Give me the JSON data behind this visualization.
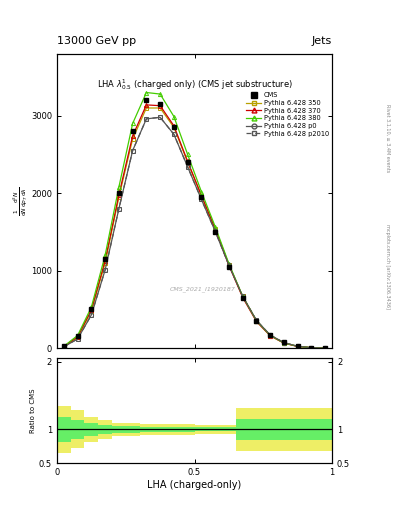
{
  "title_top": "13000 GeV pp",
  "title_right": "Jets",
  "plot_title": "LHA $\\lambda^{1}_{0.5}$ (charged only) (CMS jet substructure)",
  "xlabel": "LHA (charged-only)",
  "ylabel": "$\\frac{1}{\\mathrm{d}N}\\frac{\\mathrm{d}^{2}N}{\\mathrm{d}p_{T}\\,\\mathrm{d}\\lambda}$",
  "ylabel_ratio": "Ratio to CMS",
  "right_label1": "Rivet 3.1.10, ≥ 3.4M events",
  "right_label2": "mcplots.cern.ch [arXiv:1306.3436]",
  "watermark": "CMS_2021_I1920187",
  "x": [
    0.025,
    0.075,
    0.125,
    0.175,
    0.225,
    0.275,
    0.325,
    0.375,
    0.425,
    0.475,
    0.525,
    0.575,
    0.625,
    0.675,
    0.725,
    0.775,
    0.825,
    0.875,
    0.925,
    0.975
  ],
  "cms_y": [
    30,
    160,
    500,
    1150,
    2000,
    2800,
    3200,
    3150,
    2850,
    2400,
    1950,
    1500,
    1050,
    650,
    350,
    170,
    75,
    28,
    8,
    1
  ],
  "p350_y": [
    20,
    140,
    480,
    1100,
    1950,
    2700,
    3100,
    3100,
    2850,
    2400,
    1970,
    1540,
    1080,
    670,
    355,
    165,
    68,
    24,
    6,
    0.5
  ],
  "p370_y": [
    22,
    148,
    495,
    1130,
    1980,
    2740,
    3140,
    3130,
    2870,
    2410,
    1970,
    1540,
    1070,
    655,
    345,
    160,
    65,
    22,
    6,
    0.5
  ],
  "p380_y": [
    25,
    165,
    530,
    1200,
    2080,
    2900,
    3300,
    3280,
    2990,
    2500,
    2020,
    1570,
    1090,
    670,
    355,
    165,
    68,
    24,
    6,
    0.5
  ],
  "p0_y": [
    18,
    120,
    430,
    1010,
    1800,
    2550,
    2960,
    2980,
    2760,
    2340,
    1920,
    1510,
    1070,
    670,
    360,
    170,
    72,
    25,
    7,
    0.5
  ],
  "p2010_y": [
    18,
    120,
    430,
    1010,
    1800,
    2550,
    2960,
    2980,
    2760,
    2340,
    1920,
    1510,
    1070,
    670,
    360,
    170,
    72,
    25,
    7,
    0.5
  ],
  "color_cms": "#000000",
  "color_p350": "#b8a000",
  "color_p370": "#cc0000",
  "color_p380": "#44cc00",
  "color_p0": "#555555",
  "color_p2010": "#555555",
  "color_yellow": "#eeee66",
  "color_green": "#66ee66",
  "ylim_main": [
    0,
    3800
  ],
  "yticks_main": [
    0,
    1000,
    2000,
    3000
  ],
  "ylim_ratio": [
    0.5,
    2.05
  ],
  "yticks_ratio": [
    0.5,
    1.0,
    2.0
  ],
  "xlim": [
    0.0,
    1.0
  ],
  "xticks": [
    0.0,
    0.5,
    1.0
  ],
  "ratio_x_edges": [
    0.0,
    0.05,
    0.1,
    0.15,
    0.2,
    0.3,
    0.5,
    0.65,
    0.7,
    1.0
  ],
  "ratio_yellow_lo": [
    0.65,
    0.72,
    0.82,
    0.86,
    0.9,
    0.92,
    0.93,
    0.68,
    0.68,
    0.68
  ],
  "ratio_yellow_hi": [
    1.35,
    1.28,
    1.18,
    1.14,
    1.1,
    1.08,
    1.07,
    1.32,
    1.32,
    1.32
  ],
  "ratio_green_lo": [
    0.82,
    0.86,
    0.9,
    0.93,
    0.95,
    0.96,
    0.97,
    0.84,
    0.84,
    0.84
  ],
  "ratio_green_hi": [
    1.18,
    1.14,
    1.1,
    1.07,
    1.05,
    1.04,
    1.03,
    1.16,
    1.16,
    1.16
  ]
}
